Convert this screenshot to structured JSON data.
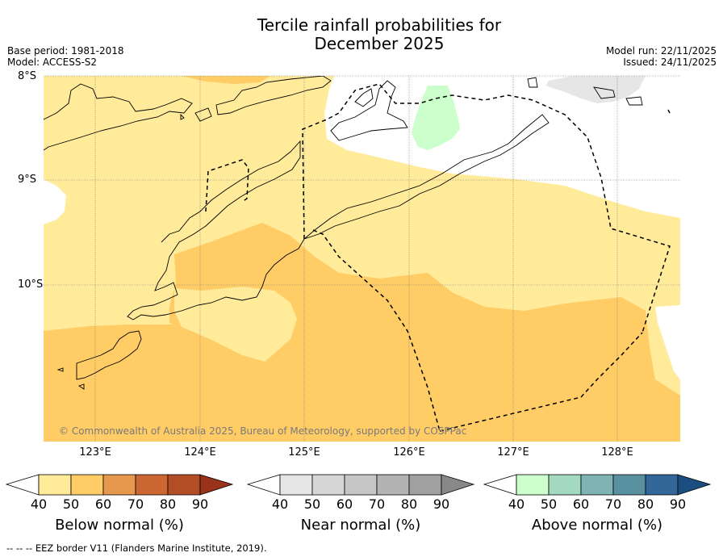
{
  "title": {
    "line1": "Tercile rainfall probabilities for",
    "line2": "December 2025"
  },
  "meta": {
    "base_period": "Base period: 1981-2018",
    "model": "Model: ACCESS-S2",
    "model_run": "Model run: 22/11/2025",
    "issued": "Issued: 24/11/2025"
  },
  "map": {
    "lat_labels": [
      "8°S",
      "9°S",
      "10°S"
    ],
    "lon_labels": [
      "123°E",
      "124°E",
      "125°E",
      "126°E",
      "127°E",
      "128°E"
    ],
    "credit": "© Commonwealth of Australia 2025, Bureau of Meteorology, supported by COSPPac",
    "colors": {
      "below_40_50": "#ffeb99",
      "below_50_60": "#ffcc66",
      "near_40_50": "#e6e6e6",
      "above_40_50": "#ccffcc",
      "no_signal": "#ffffff"
    }
  },
  "colorbars": [
    {
      "title": "Below normal (%)",
      "ticks": [
        "40",
        "50",
        "60",
        "70",
        "80",
        "90"
      ],
      "colors": [
        "#ffeb99",
        "#ffcc66",
        "#e6994d",
        "#cc6633",
        "#b34d26",
        "#99331a"
      ]
    },
    {
      "title": "Near normal (%)",
      "ticks": [
        "40",
        "50",
        "60",
        "70",
        "80",
        "90"
      ],
      "colors": [
        "#e6e6e6",
        "#d6d6d6",
        "#c6c6c6",
        "#b3b3b3",
        "#a0a0a0",
        "#888888"
      ]
    },
    {
      "title": "Above normal (%)",
      "ticks": [
        "40",
        "50",
        "60",
        "70",
        "80",
        "90"
      ],
      "colors": [
        "#ccffcc",
        "#a3d9bf",
        "#80b3b3",
        "#5990a0",
        "#336699",
        "#1a4d80"
      ]
    }
  ],
  "legend_note": "--  --  -- EEZ border V11 (Flanders Marine Institute, 2019)."
}
